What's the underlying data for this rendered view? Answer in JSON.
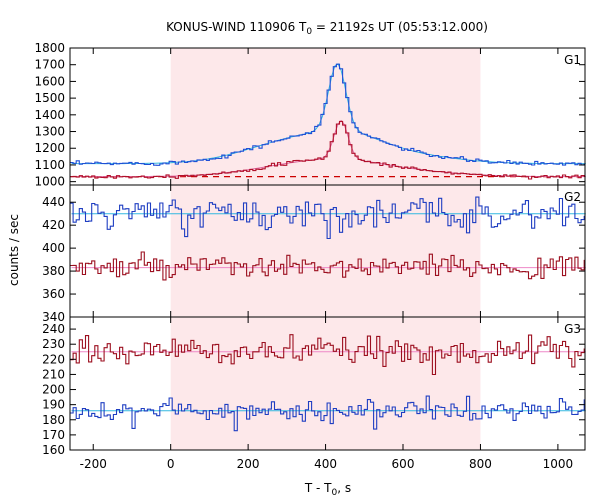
{
  "chart_data": {
    "type": "line",
    "title": {
      "prefix": "KONUS-WIND 110906 T",
      "sub": "0",
      "suffix": " = 21192s UT (05:53:12.000)"
    },
    "xlabel": {
      "prefix": "T - T",
      "sub": "0",
      "suffix": ", s"
    },
    "ylabel": "counts / sec",
    "xlim": [
      -260,
      1070
    ],
    "xticks": [
      -200,
      0,
      200,
      400,
      600,
      800,
      1000
    ],
    "highlight_interval": [
      0,
      800
    ],
    "highlight_color": "#fde8ea",
    "colors": {
      "g1_total": "#1f4fd6",
      "g1_total_smooth": "#33b8e0",
      "g1_soft": "#b0102a",
      "g1_soft_smooth": "#e066a0",
      "g1_background": "#cc0000",
      "blue": "#1f3ec2",
      "blue_smooth": "#33b8e0",
      "red": "#9c0f1f",
      "red_smooth": "#ee88c8"
    },
    "panels": [
      {
        "label": "G1",
        "ylim": [
          980,
          1800
        ],
        "yticks": [
          1000,
          1100,
          1200,
          1300,
          1400,
          1500,
          1600,
          1700,
          1800
        ],
        "background_level": 1030,
        "series": [
          {
            "color_key": "g1_total",
            "smooth_key": "g1_total_smooth",
            "base": 1108,
            "noise": 6,
            "components": [
              {
                "center": 330,
                "width": 130,
                "amp": 140
              },
              {
                "center": 430,
                "width": 22,
                "amp": 400
              },
              {
                "center": 470,
                "width": 90,
                "amp": 90
              },
              {
                "center": 620,
                "width": 120,
                "amp": 45
              }
            ]
          },
          {
            "color_key": "g1_soft",
            "smooth_key": "g1_soft_smooth",
            "base": 1030,
            "noise": 5,
            "components": [
              {
                "center": 350,
                "width": 140,
                "amp": 70
              },
              {
                "center": 440,
                "width": 18,
                "amp": 230
              },
              {
                "center": 470,
                "width": 110,
                "amp": 45
              },
              {
                "center": 650,
                "width": 120,
                "amp": 22
              }
            ]
          }
        ]
      },
      {
        "label": "G2",
        "ylim": [
          340,
          455
        ],
        "yticks": [
          340,
          360,
          380,
          400,
          420,
          440
        ],
        "series": [
          {
            "color_key": "blue",
            "smooth_key": "blue_smooth",
            "base": 430,
            "noise": 7,
            "components": []
          },
          {
            "color_key": "red",
            "smooth_key": "red_smooth",
            "base": 383,
            "noise": 5,
            "components": []
          }
        ]
      },
      {
        "label": "G3",
        "ylim": [
          160,
          248
        ],
        "yticks": [
          160,
          170,
          180,
          190,
          200,
          210,
          220,
          230,
          240
        ],
        "series": [
          {
            "color_key": "red",
            "smooth_key": "red_smooth",
            "base": 225,
            "noise": 4.5,
            "components": []
          },
          {
            "color_key": "blue",
            "smooth_key": "blue_smooth",
            "base": 186,
            "noise": 3.8,
            "components": []
          }
        ]
      }
    ],
    "bin_width_s": 8,
    "grid": false,
    "legend": "none"
  }
}
